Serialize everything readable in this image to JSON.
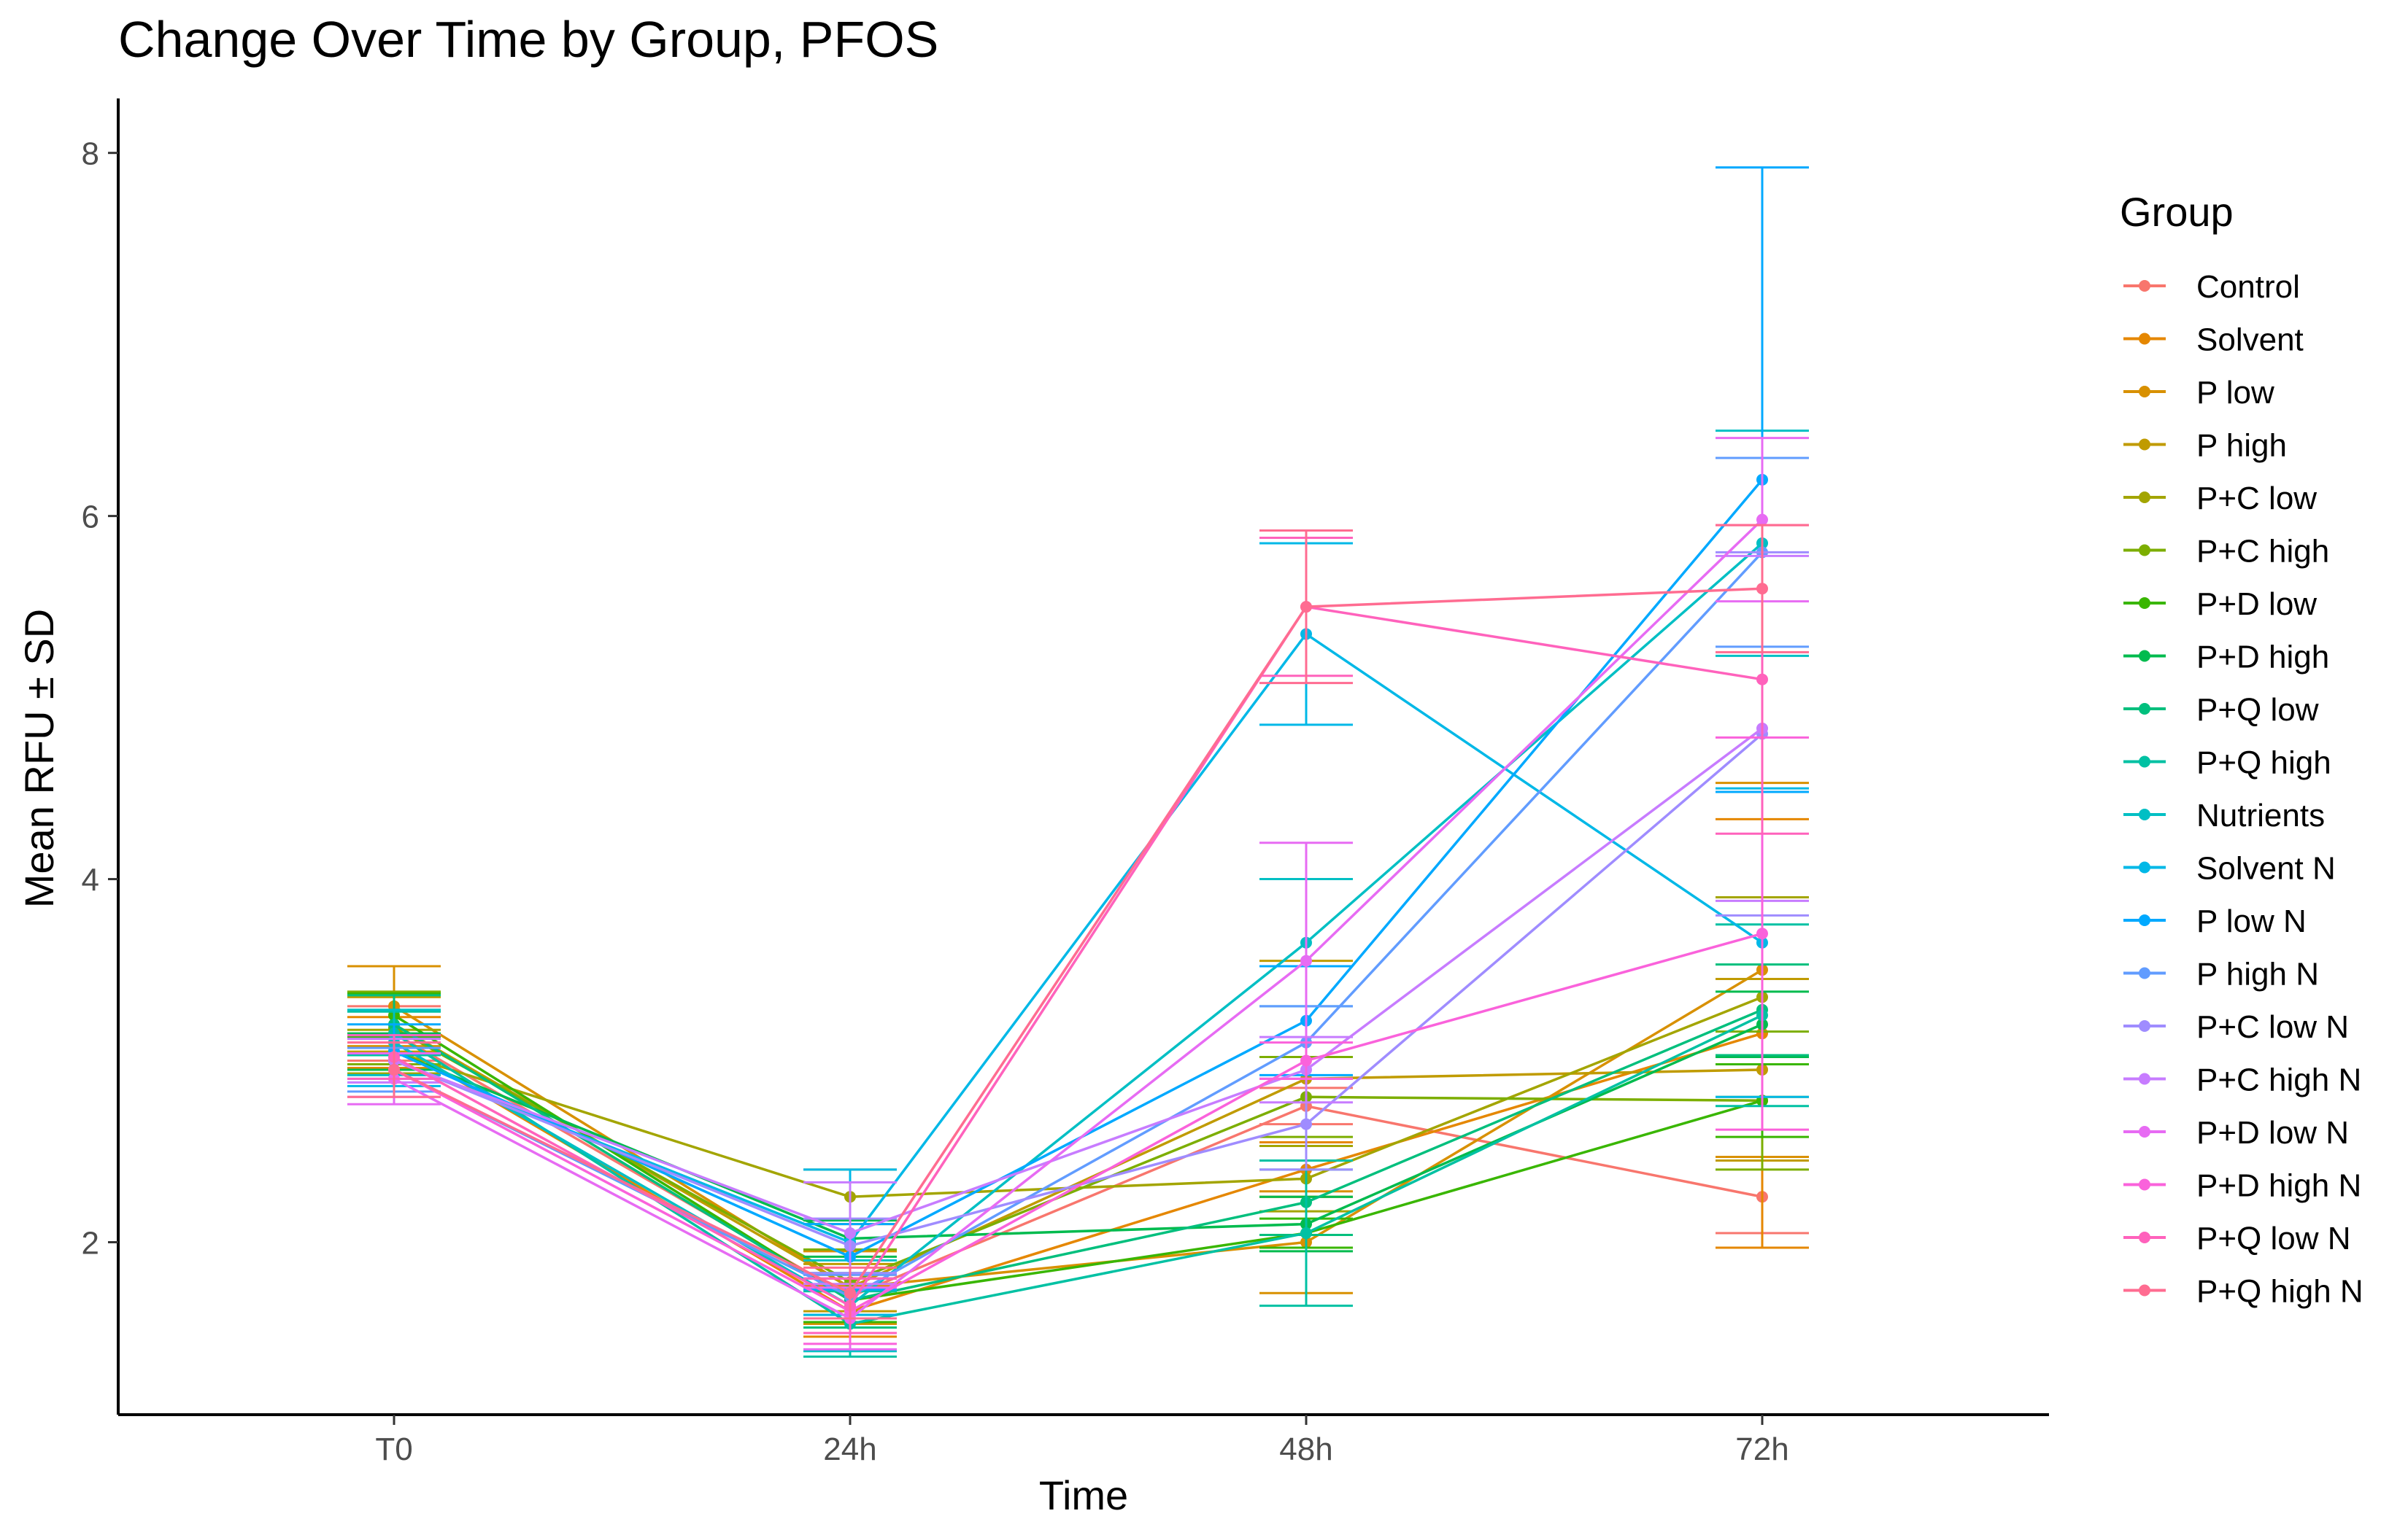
{
  "chart_data": {
    "type": "line",
    "title": "Change Over Time by Group, PFOS",
    "xlabel": "Time",
    "ylabel": "Mean RFU ± SD",
    "categories": [
      "T0",
      "24h",
      "48h",
      "72h"
    ],
    "yticks": [
      2,
      4,
      6,
      8
    ],
    "ylim": [
      1.05,
      8.3
    ],
    "grid": false,
    "legend": {
      "title": "Group",
      "position": "right"
    },
    "series": [
      {
        "name": "Control",
        "color": "#F8766D",
        "values": [
          3.15,
          1.7,
          2.75,
          2.25
        ],
        "sd": [
          0.15,
          0.12,
          0.1,
          0.2
        ]
      },
      {
        "name": "Solvent",
        "color": "#E58700",
        "values": [
          3.1,
          1.62,
          2.4,
          3.15
        ],
        "sd": [
          0.14,
          0.14,
          0.15,
          1.18
        ]
      },
      {
        "name": "P low",
        "color": "#D89000",
        "values": [
          3.3,
          1.75,
          2.0,
          3.5
        ],
        "sd": [
          0.22,
          0.2,
          0.28,
          1.03
        ]
      },
      {
        "name": "P high",
        "color": "#C09B00",
        "values": [
          3.2,
          1.75,
          2.9,
          2.95
        ],
        "sd": [
          0.15,
          0.13,
          0.65,
          0.5
        ]
      },
      {
        "name": "P+C low",
        "color": "#A3A500",
        "values": [
          3.05,
          2.25,
          2.35,
          3.35
        ],
        "sd": [
          0.12,
          0.15,
          0.18,
          0.55
        ]
      },
      {
        "name": "P+C high",
        "color": "#7CAE00",
        "values": [
          3.18,
          1.78,
          2.8,
          2.78
        ],
        "sd": [
          0.2,
          0.18,
          0.22,
          0.38
        ]
      },
      {
        "name": "P+D low",
        "color": "#39B600",
        "values": [
          3.25,
          1.68,
          2.05,
          2.78
        ],
        "sd": [
          0.12,
          0.12,
          0.08,
          0.2
        ]
      },
      {
        "name": "P+D high",
        "color": "#00BB4E",
        "values": [
          3.05,
          2.02,
          2.1,
          3.2
        ],
        "sd": [
          0.1,
          0.1,
          0.15,
          0.18
        ]
      },
      {
        "name": "P+Q low",
        "color": "#00BF7D",
        "values": [
          3.2,
          1.68,
          2.22,
          3.28
        ],
        "sd": [
          0.16,
          0.15,
          0.18,
          0.25
        ]
      },
      {
        "name": "P+Q high",
        "color": "#00C1A3",
        "values": [
          3.15,
          1.55,
          2.05,
          3.25
        ],
        "sd": [
          0.12,
          0.18,
          0.4,
          0.5
        ]
      },
      {
        "name": "Nutrients",
        "color": "#00BFC4",
        "values": [
          3.1,
          1.65,
          3.65,
          5.85
        ],
        "sd": [
          0.18,
          0.25,
          0.35,
          0.62
        ]
      },
      {
        "name": "Solvent N",
        "color": "#00B8E7",
        "values": [
          3.0,
          2.0,
          5.35,
          3.65
        ],
        "sd": [
          0.14,
          0.4,
          0.5,
          0.85
        ]
      },
      {
        "name": "P low N",
        "color": "#00A9FF",
        "values": [
          3.05,
          1.92,
          3.22,
          6.2
        ],
        "sd": [
          0.15,
          0.18,
          0.3,
          1.72
        ]
      },
      {
        "name": "P high N",
        "color": "#619CFF",
        "values": [
          2.95,
          1.7,
          3.1,
          5.8
        ],
        "sd": [
          0.12,
          0.12,
          0.2,
          0.52
        ]
      },
      {
        "name": "P+C low N",
        "color": "#9F8CFF",
        "values": [
          3.0,
          1.98,
          2.65,
          4.8
        ],
        "sd": [
          0.12,
          0.15,
          0.25,
          1.0
        ]
      },
      {
        "name": "P+C high N",
        "color": "#C77CFF",
        "values": [
          3.0,
          2.05,
          2.95,
          4.83
        ],
        "sd": [
          0.12,
          0.28,
          0.18,
          0.95
        ]
      },
      {
        "name": "P+D low N",
        "color": "#E76BF3",
        "values": [
          2.9,
          1.58,
          3.55,
          5.98
        ],
        "sd": [
          0.14,
          0.17,
          0.65,
          0.45
        ]
      },
      {
        "name": "P+D high N",
        "color": "#FA62DB",
        "values": [
          2.95,
          1.62,
          3.0,
          3.7
        ],
        "sd": [
          0.15,
          0.18,
          0.1,
          1.08
        ]
      },
      {
        "name": "P+Q low N",
        "color": "#FF62BC",
        "values": [
          3.02,
          1.65,
          5.5,
          5.1
        ],
        "sd": [
          0.12,
          0.15,
          0.38,
          0.85
        ]
      },
      {
        "name": "P+Q high N",
        "color": "#FF6C91",
        "values": [
          2.95,
          1.72,
          5.5,
          5.6
        ],
        "sd": [
          0.15,
          0.14,
          0.42,
          0.35
        ]
      }
    ]
  }
}
